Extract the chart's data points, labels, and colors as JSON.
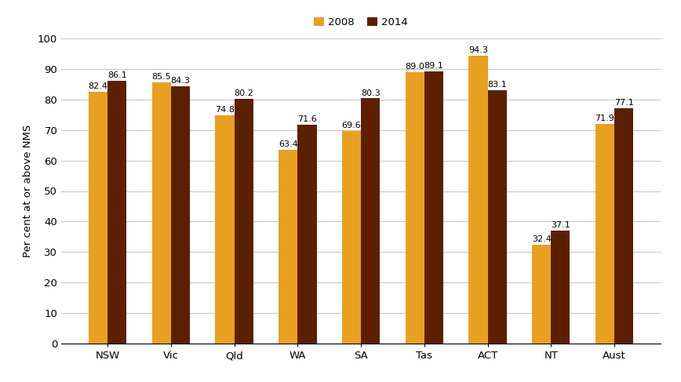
{
  "categories": [
    "NSW",
    "Vic",
    "Qld",
    "WA",
    "SA",
    "Tas",
    "ACT",
    "NT",
    "Aust"
  ],
  "values_2008": [
    82.4,
    85.5,
    74.8,
    63.4,
    69.6,
    89.0,
    94.3,
    32.4,
    71.9
  ],
  "values_2014": [
    86.1,
    84.3,
    80.2,
    71.6,
    80.3,
    89.1,
    83.1,
    37.1,
    77.1
  ],
  "color_2008": "#E8A020",
  "color_2014": "#5C2000",
  "ylabel": "Per cent at or above NMS",
  "ylim": [
    0,
    100
  ],
  "yticks": [
    0,
    10,
    20,
    30,
    40,
    50,
    60,
    70,
    80,
    90,
    100
  ],
  "legend_labels": [
    "2008",
    "2014"
  ],
  "bar_width": 0.3,
  "label_fontsize": 8,
  "axis_fontsize": 9.5,
  "legend_fontsize": 9.5,
  "background_color": "#ffffff",
  "grid_color": "#c8c8c8"
}
